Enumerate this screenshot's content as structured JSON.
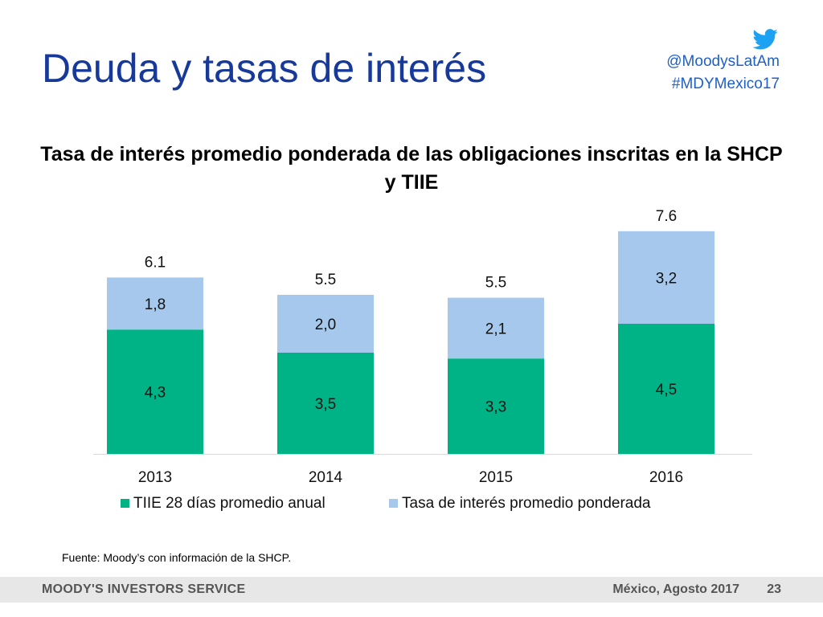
{
  "header": {
    "title": "Deuda y tasas de interés",
    "social_handle": "@MoodysLatAm",
    "social_hashtag": "#MDYMexico17",
    "twitter_icon": "twitter-bird-icon",
    "accent_color": "#17399a",
    "social_color": "#1f5fc8"
  },
  "chart_data": {
    "type": "bar",
    "stacked": true,
    "title": "Tasa de interés promedio ponderada de las obligaciones inscritas en la SHCP y TIIE",
    "categories": [
      "2013",
      "2014",
      "2015",
      "2016"
    ],
    "series": [
      {
        "name": "TIIE 28 días promedio anual",
        "values": [
          4.3,
          3.5,
          3.3,
          4.5
        ],
        "labels": [
          "4,3",
          "3,5",
          "3,3",
          "4,5"
        ],
        "color": "#00b386"
      },
      {
        "name": "Tasa de interés promedio ponderada",
        "values": [
          1.8,
          2.0,
          2.1,
          3.2
        ],
        "labels": [
          "1,8",
          "2,0",
          "2,1",
          "3,2"
        ],
        "color": "#a6c8ec"
      }
    ],
    "totals": [
      "6.1",
      "5.5",
      "5.5",
      "7.6"
    ],
    "ylim": [
      0,
      8
    ],
    "xlabel": "",
    "ylabel": "",
    "grid": false,
    "legend_position": "bottom"
  },
  "source": "Fuente: Moody’s con información de la SHCP.",
  "footer": {
    "brand": "MOODY'S INVESTORS SERVICE",
    "place_date": "México, Agosto 2017",
    "page_number": "23"
  }
}
